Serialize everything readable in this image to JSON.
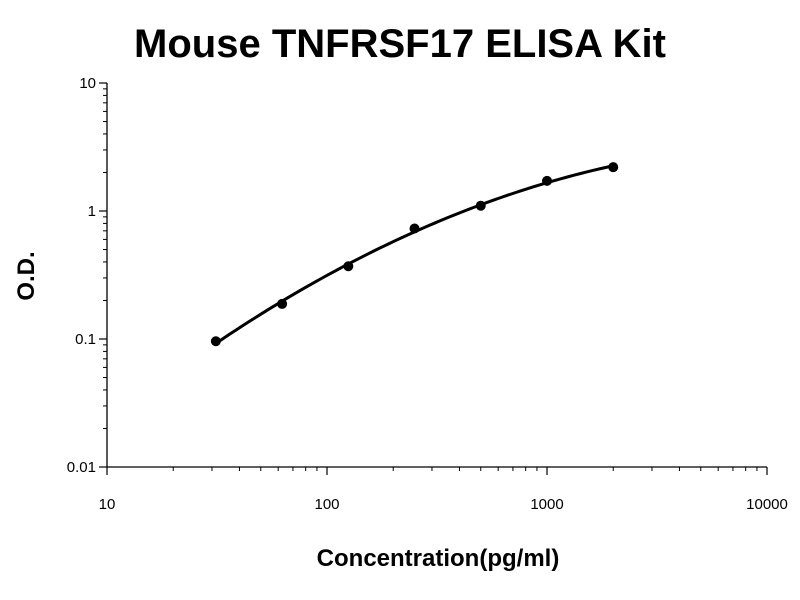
{
  "chart_data": {
    "type": "scatter",
    "title": "Mouse TNFRSF17 ELISA Kit",
    "xlabel": "Concentration(pg/ml)",
    "ylabel": "O.D.",
    "x_scale": "log",
    "y_scale": "log",
    "xlim": [
      10,
      10000
    ],
    "ylim": [
      0.01,
      10
    ],
    "x_ticks": [
      "10",
      "100",
      "1000",
      "10000"
    ],
    "y_ticks": [
      "0.01",
      "0.1",
      "1",
      "10"
    ],
    "grid": false,
    "legend": "none",
    "series": [
      {
        "points": [
          {
            "x": 31.25,
            "y": 0.096
          },
          {
            "x": 62.5,
            "y": 0.188
          },
          {
            "x": 125,
            "y": 0.37
          },
          {
            "x": 250,
            "y": 0.73
          },
          {
            "x": 500,
            "y": 1.1
          },
          {
            "x": 1000,
            "y": 1.72
          },
          {
            "x": 2000,
            "y": 2.2
          }
        ],
        "fit_line": true
      }
    ],
    "colors": {
      "points": "#000000",
      "line": "#000000",
      "axes": "#000000"
    }
  }
}
